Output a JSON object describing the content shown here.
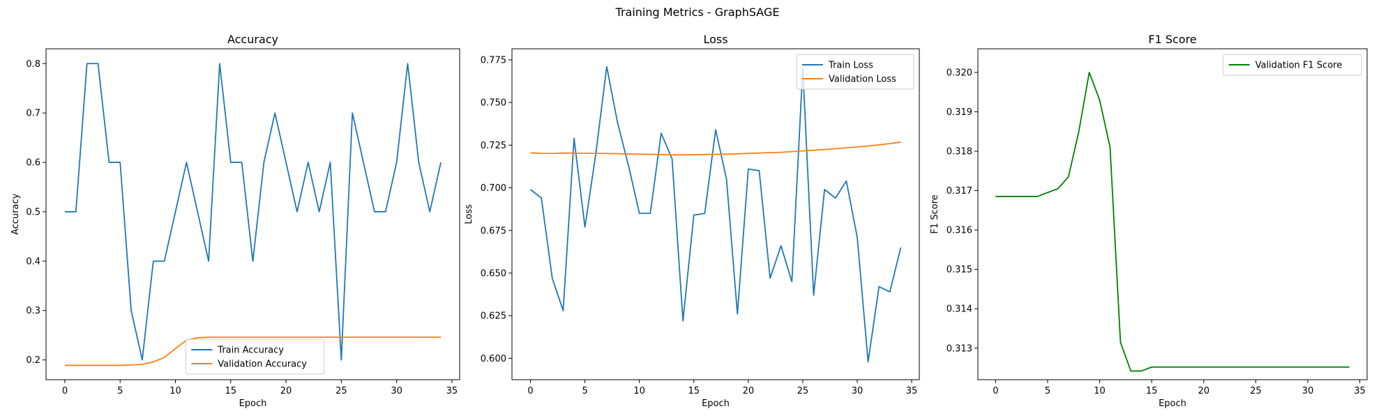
{
  "figure": {
    "title": "Training Metrics - GraphSAGE"
  },
  "chart_data": [
    {
      "type": "line",
      "title": "Accuracy",
      "xlabel": "Epoch",
      "ylabel": "Accuracy",
      "xlim": [
        -1.7,
        35.7
      ],
      "ylim": [
        0.16,
        0.83
      ],
      "xticks": [
        0,
        5,
        10,
        15,
        20,
        25,
        30,
        35
      ],
      "yticks": [
        0.2,
        0.3,
        0.4,
        0.5,
        0.6,
        0.7,
        0.8
      ],
      "ytick_decimals": 1,
      "legend": "lower-center",
      "grid": false,
      "series": [
        {
          "name": "Train Accuracy",
          "color": "#1f77b4",
          "x": [
            0,
            1,
            2,
            3,
            4,
            5,
            6,
            7,
            8,
            9,
            10,
            11,
            12,
            13,
            14,
            15,
            16,
            17,
            18,
            19,
            20,
            21,
            22,
            23,
            24,
            25,
            26,
            27,
            28,
            29,
            30,
            31,
            32,
            33,
            34
          ],
          "values": [
            0.5,
            0.5,
            0.8,
            0.8,
            0.6,
            0.6,
            0.3,
            0.2,
            0.4,
            0.4,
            0.5,
            0.6,
            0.5,
            0.4,
            0.8,
            0.6,
            0.6,
            0.4,
            0.6,
            0.7,
            0.6,
            0.5,
            0.6,
            0.5,
            0.6,
            0.2,
            0.7,
            0.6,
            0.5,
            0.5,
            0.6,
            0.8,
            0.6,
            0.5,
            0.6
          ]
        },
        {
          "name": "Validation Accuracy",
          "color": "#ff7f0e",
          "x": [
            0,
            1,
            2,
            3,
            4,
            5,
            6,
            7,
            8,
            9,
            10,
            11,
            12,
            13,
            14,
            15,
            16,
            17,
            18,
            19,
            20,
            21,
            22,
            23,
            24,
            25,
            26,
            27,
            28,
            29,
            30,
            31,
            32,
            33,
            34
          ],
          "values": [
            0.189,
            0.189,
            0.189,
            0.189,
            0.189,
            0.189,
            0.19,
            0.191,
            0.196,
            0.205,
            0.223,
            0.24,
            0.245,
            0.246,
            0.246,
            0.246,
            0.246,
            0.246,
            0.246,
            0.246,
            0.246,
            0.246,
            0.246,
            0.246,
            0.246,
            0.246,
            0.246,
            0.246,
            0.246,
            0.246,
            0.246,
            0.246,
            0.246,
            0.246,
            0.246
          ]
        }
      ]
    },
    {
      "type": "line",
      "title": "Loss",
      "xlabel": "Epoch",
      "ylabel": "Loss",
      "xlim": [
        -1.7,
        35.7
      ],
      "ylim": [
        0.5875,
        0.7815
      ],
      "xticks": [
        0,
        5,
        10,
        15,
        20,
        25,
        30,
        35
      ],
      "yticks": [
        0.6,
        0.625,
        0.65,
        0.675,
        0.7,
        0.725,
        0.75,
        0.775
      ],
      "ytick_decimals": 3,
      "legend": "upper-right",
      "grid": false,
      "series": [
        {
          "name": "Train Loss",
          "color": "#1f77b4",
          "x": [
            0,
            1,
            2,
            3,
            4,
            5,
            6,
            7,
            8,
            9,
            10,
            11,
            12,
            13,
            14,
            15,
            16,
            17,
            18,
            19,
            20,
            21,
            22,
            23,
            24,
            25,
            26,
            27,
            28,
            29,
            30,
            31,
            32,
            33,
            34
          ],
          "values": [
            0.699,
            0.694,
            0.647,
            0.628,
            0.729,
            0.677,
            0.72,
            0.771,
            0.738,
            0.713,
            0.685,
            0.685,
            0.732,
            0.717,
            0.622,
            0.684,
            0.685,
            0.734,
            0.705,
            0.626,
            0.711,
            0.71,
            0.647,
            0.666,
            0.645,
            0.77,
            0.637,
            0.699,
            0.694,
            0.704,
            0.671,
            0.598,
            0.642,
            0.639,
            0.665
          ]
        },
        {
          "name": "Validation Loss",
          "color": "#ff7f0e",
          "x": [
            0,
            1,
            2,
            3,
            4,
            5,
            6,
            7,
            8,
            9,
            10,
            11,
            12,
            13,
            14,
            15,
            16,
            17,
            18,
            19,
            20,
            21,
            22,
            23,
            24,
            25,
            26,
            27,
            28,
            29,
            30,
            31,
            32,
            33,
            34
          ],
          "values": [
            0.7205,
            0.7202,
            0.7201,
            0.7204,
            0.7203,
            0.7202,
            0.7202,
            0.7201,
            0.72,
            0.7198,
            0.7197,
            0.7196,
            0.7195,
            0.7193,
            0.7193,
            0.7194,
            0.7195,
            0.7196,
            0.7197,
            0.7199,
            0.7202,
            0.7204,
            0.7206,
            0.7208,
            0.7212,
            0.7216,
            0.722,
            0.7225,
            0.7229,
            0.7234,
            0.7239,
            0.7245,
            0.7252,
            0.7259,
            0.7268
          ]
        }
      ]
    },
    {
      "type": "line",
      "title": "F1 Score",
      "xlabel": "Epoch",
      "ylabel": "F1 Score",
      "xlim": [
        -1.7,
        35.7
      ],
      "ylim": [
        0.3122,
        0.3206
      ],
      "xticks": [
        0,
        5,
        10,
        15,
        20,
        25,
        30,
        35
      ],
      "yticks": [
        0.313,
        0.314,
        0.315,
        0.316,
        0.317,
        0.318,
        0.319,
        0.32
      ],
      "ytick_decimals": 3,
      "legend": "upper-right",
      "grid": false,
      "series": [
        {
          "name": "Validation F1 Score",
          "color": "#008000",
          "x": [
            0,
            1,
            2,
            3,
            4,
            5,
            6,
            7,
            8,
            9,
            10,
            11,
            12,
            13,
            14,
            15,
            16,
            17,
            18,
            19,
            20,
            21,
            22,
            23,
            24,
            25,
            26,
            27,
            28,
            29,
            30,
            31,
            32,
            33,
            34
          ],
          "values": [
            0.31685,
            0.31685,
            0.31685,
            0.31685,
            0.31685,
            0.31695,
            0.31705,
            0.31735,
            0.3185,
            0.32,
            0.3193,
            0.3181,
            0.31315,
            0.31242,
            0.31242,
            0.31252,
            0.31252,
            0.31252,
            0.31252,
            0.31252,
            0.31252,
            0.31252,
            0.31252,
            0.31252,
            0.31252,
            0.31252,
            0.31252,
            0.31252,
            0.31252,
            0.31252,
            0.31252,
            0.31252,
            0.31252,
            0.31252,
            0.31252
          ]
        }
      ]
    }
  ]
}
